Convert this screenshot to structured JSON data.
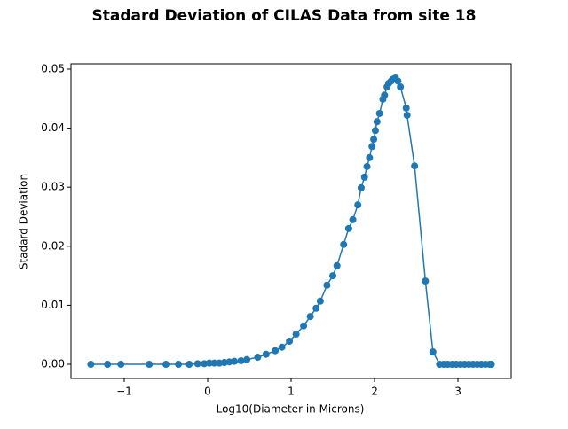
{
  "chart_data": {
    "type": "line",
    "title": "Stadard Deviation of CILAS Data from site 18",
    "x_label": "Log10(Diameter in Microns)",
    "y_label": "Stadard Deviation",
    "x": [
      -1.4,
      -1.2,
      -1.04,
      -0.7,
      -0.5,
      -0.35,
      -0.22,
      -0.12,
      -0.04,
      0.02,
      0.08,
      0.14,
      0.2,
      0.26,
      0.32,
      0.4,
      0.47,
      0.6,
      0.7,
      0.81,
      0.89,
      0.98,
      1.06,
      1.15,
      1.23,
      1.3,
      1.35,
      1.43,
      1.5,
      1.55,
      1.63,
      1.69,
      1.74,
      1.8,
      1.84,
      1.88,
      1.91,
      1.94,
      1.97,
      1.99,
      2.01,
      2.03,
      2.06,
      2.1,
      2.12,
      2.15,
      2.17,
      2.2,
      2.22,
      2.25,
      2.28,
      2.31,
      2.38,
      2.39,
      2.48,
      2.61,
      2.7,
      2.78,
      2.83,
      2.88,
      2.93,
      2.98,
      3.03,
      3.08,
      3.13,
      3.18,
      3.23,
      3.28,
      3.33,
      3.38,
      3.4
    ],
    "series": [
      {
        "color": "#1f77b4",
        "values": [
          0,
          0,
          0,
          0,
          0,
          0,
          0,
          0.0001,
          0.0001,
          0.0002,
          0.0002,
          0.0002,
          0.0003,
          0.0004,
          0.0005,
          0.0006,
          0.0008,
          0.0012,
          0.0017,
          0.0023,
          0.0029,
          0.0039,
          0.0051,
          0.0065,
          0.0081,
          0.0095,
          0.0107,
          0.0134,
          0.015,
          0.0167,
          0.0203,
          0.023,
          0.0245,
          0.027,
          0.0299,
          0.0317,
          0.0335,
          0.035,
          0.0369,
          0.0381,
          0.0396,
          0.0411,
          0.0425,
          0.0449,
          0.0456,
          0.047,
          0.0476,
          0.048,
          0.0483,
          0.0485,
          0.048,
          0.047,
          0.0434,
          0.0422,
          0.0336,
          0.0141,
          0.0021,
          0,
          0,
          0,
          0,
          0,
          0,
          0,
          0,
          0,
          0,
          0,
          0,
          0,
          0
        ]
      }
    ],
    "xlim": [
      -1.638,
      3.638
    ],
    "xticks": [
      {
        "value": -1,
        "label": "−1"
      },
      0,
      1,
      2,
      3
    ],
    "ylim": [
      -0.0024,
      0.0509
    ],
    "yticks": [
      {
        "value": 0,
        "label": "0.00"
      },
      {
        "value": 0.01,
        "label": "0.01"
      },
      {
        "value": 0.02,
        "label": "0.02"
      },
      {
        "value": 0.03,
        "label": "0.03"
      },
      {
        "value": 0.04,
        "label": "0.04"
      },
      {
        "value": 0.05,
        "label": "0.05"
      }
    ]
  }
}
